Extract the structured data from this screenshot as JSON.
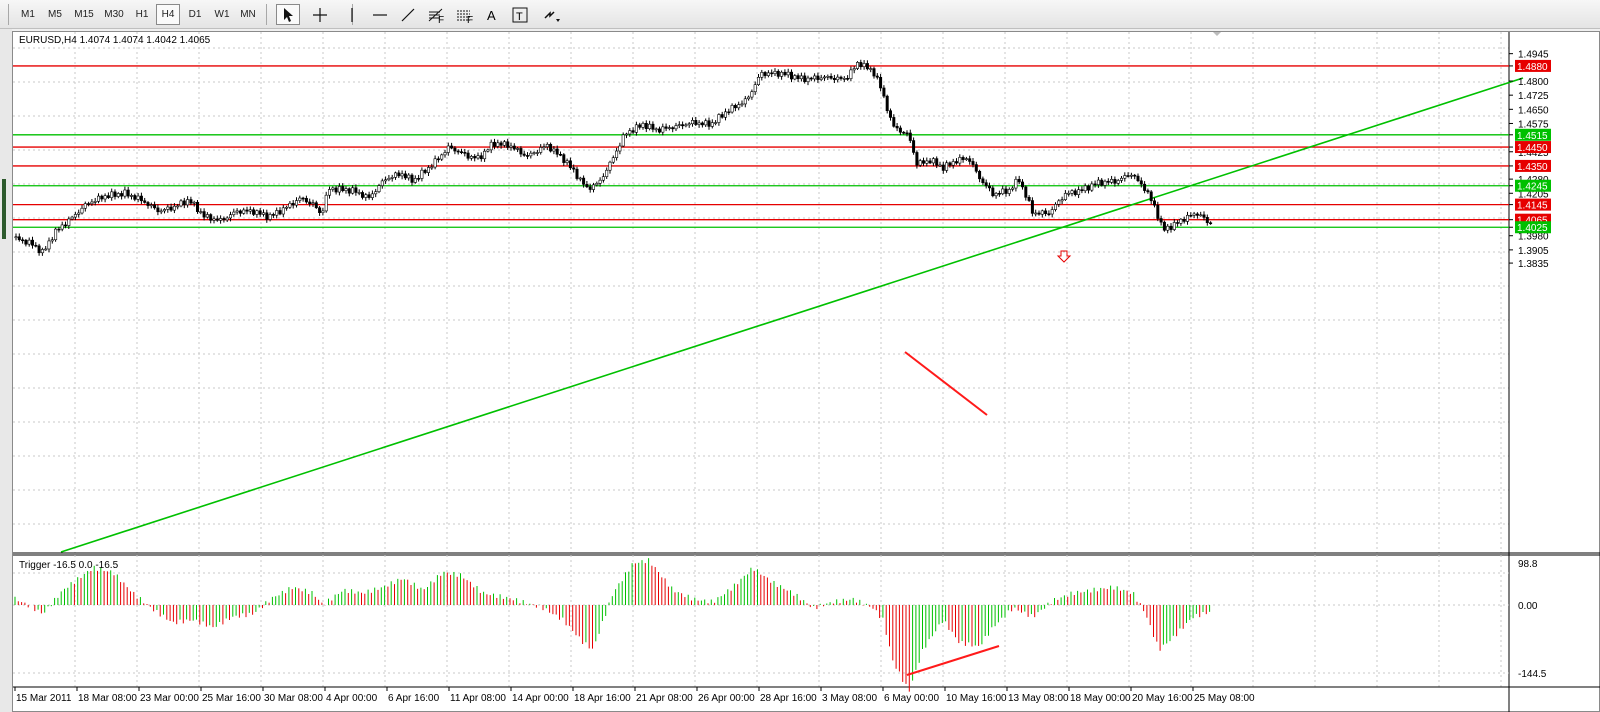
{
  "toolbar": {
    "timeframes": [
      "M1",
      "M5",
      "M15",
      "M30",
      "H1",
      "H4",
      "D1",
      "W1",
      "MN"
    ],
    "active_timeframe": "H4",
    "tools": [
      "cursor-icon",
      "crosshair-icon",
      "vertical-line-icon",
      "horizontal-line-icon",
      "trendline-icon",
      "fibonacci-icon",
      "gann-fan-icon",
      "text-icon",
      "text-label-icon",
      "arrows-icon"
    ]
  },
  "chart": {
    "header": "EURUSD,H4  1.4074 1.4074 1.4042 1.4065",
    "price_axis": {
      "ticks": [
        "1.4945",
        "1.4880",
        "1.4800",
        "1.4725",
        "1.4650",
        "1.4575",
        "1.4515",
        "1.4450",
        "1.4425",
        "1.4350",
        "1.4280",
        "1.4245",
        "1.4205",
        "1.4145",
        "1.4065",
        "1.4025",
        "1.3980",
        "1.3905",
        "1.3835"
      ]
    },
    "time_axis": [
      "15 Mar 2011",
      "18 Mar 08:00",
      "23 Mar 00:00",
      "25 Mar 16:00",
      "30 Mar 08:00",
      "4 Apr 00:00",
      "6 Apr 16:00",
      "11 Apr 08:00",
      "14 Apr 00:00",
      "18 Apr 16:00",
      "21 Apr 08:00",
      "26 Apr 00:00",
      "28 Apr 16:00",
      "3 May 08:00",
      "6 May 00:00",
      "10 May 16:00",
      "13 May 08:00",
      "18 May 00:00",
      "20 May 16:00",
      "25 May 08:00"
    ],
    "levels": [
      {
        "price": 1.488,
        "label": "1.4880",
        "color": "#e60000"
      },
      {
        "price": 1.4515,
        "label": "1.4515",
        "color": "#00c000"
      },
      {
        "price": 1.445,
        "label": "1.4450",
        "color": "#e60000"
      },
      {
        "price": 1.435,
        "label": "1.4350",
        "color": "#e60000"
      },
      {
        "price": 1.4245,
        "label": "1.4245",
        "color": "#00c000"
      },
      {
        "price": 1.4145,
        "label": "1.4145",
        "color": "#e60000"
      },
      {
        "price": 1.4065,
        "label": "1.4065",
        "color": "#e60000"
      },
      {
        "price": 1.4025,
        "label": "1.4025",
        "color": "#00c000"
      }
    ],
    "colors": {
      "bull": "#00c000",
      "bear": "#e60000",
      "grid": "#c8c8c8",
      "candle": "#000000"
    }
  },
  "indicator": {
    "header": "Trigger -16.5 0.0 -16.5",
    "axis_ticks": [
      "98.8",
      "0.00",
      "-144.5"
    ]
  }
}
